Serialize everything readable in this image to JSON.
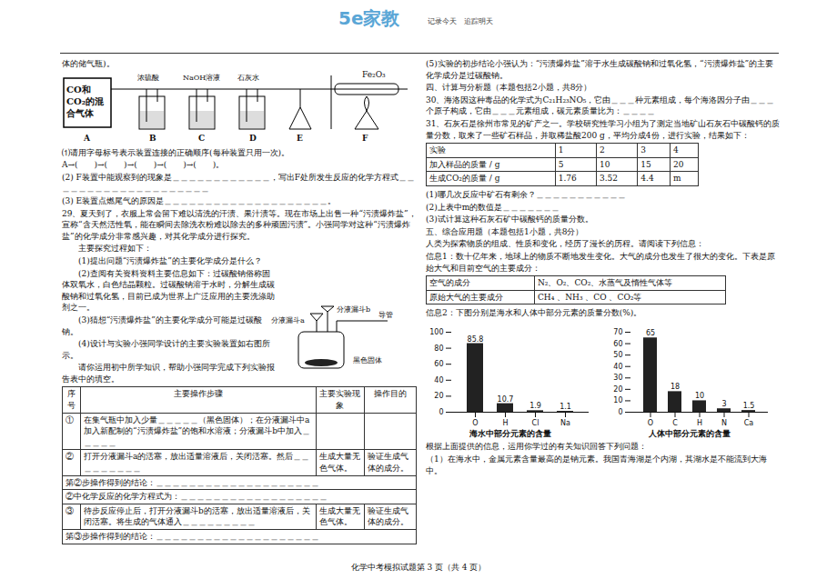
{
  "header": {
    "logo": "5e家教",
    "slogan": "记录今天　追踪明天"
  },
  "left": {
    "intro": "体的储气瓶)。",
    "apparatus": {
      "gas_label": "CO和CO₂的混合气体",
      "labels": [
        "A",
        "B",
        "C",
        "D",
        "E",
        "F"
      ],
      "reagents": [
        "浓硫酸",
        "NaOH溶液",
        "石灰水",
        "Fe₂O₃"
      ]
    },
    "q28": [
      "⑴请用字母标号表示装置连接的正确顺序(每种装置只用一次)。",
      "A→(　　)→(　　)→(　　)→(　　)→(　　)。",
      "(2) F装置中能观察到的现象是＿＿＿＿＿＿＿＿＿＿＿＿，写出F处所发生反应的化学方程式＿＿＿＿＿＿＿＿＿＿＿＿＿＿＿＿＿＿＿＿",
      "(3) E装置点燃尾气的原因是＿＿＿＿＿＿＿＿＿＿＿＿＿＿＿＿＿＿＿＿。"
    ],
    "q29": [
      "29、夏天到了，衣服上常会留下难以清洗的汗渍、果汁渍等。现在市场上出售一种“污渍爆炸盐”，宣称“含天然活性氧，能在瞬间去除洗衣粉难以除去的多种顽固污渍”。小强同学对这种“污渍爆炸盐”的化学成分非常感兴趣，对其化学成分进行探究。",
      "主要探究过程如下：",
      "(1)提出问题“污渍爆炸盐”的主要化学成分是什么？",
      "(2)查阅有关资料资料主要信息如下：过碳酸钠俗称固体双氧水，白色结晶颗粒。过碳酸钠溶于水时，分解生成碳酸钠和过氧化氢，目前已成为世界上广泛应用的主要洗涤助剂之一。",
      "(3)猜想“污渍爆炸盐”的主要化学成分可能是过碳酸钠。",
      "(4)设计与实验小强同学设计的主要实验装置如右图所示。",
      "请你运用初中所学知识，帮助小强同学完成下列实验报告表中的填空。"
    ],
    "apparatus2": [
      "分液漏斗b",
      "分液漏斗a",
      "导管",
      "黑色固体"
    ],
    "table": {
      "header": [
        "序号",
        "主要操作步骤",
        "主要实验现象",
        "操作目的"
      ],
      "rows": [
        [
          "①",
          "在集气瓶中加入少量＿＿＿＿＿（黑色固体）；在分液漏斗中a加入新配制的“污渍爆炸盐”的饱和水溶液；分液漏斗b中加入＿＿＿＿＿",
          "",
          ""
        ],
        [
          "②",
          "打开分液漏斗a的活塞，放出适量溶液后，关闭活塞。然后＿＿＿＿＿＿＿＿＿",
          "生成大量无色气体。",
          "验证生成气体的成分。"
        ],
        [
          "第②步操作得到的结论：＿＿＿＿＿＿＿＿＿＿＿＿＿＿＿＿＿＿＿＿"
        ],
        [
          "②中化学反应的化学方程式为：＿＿＿＿＿＿＿＿＿＿＿＿＿＿＿＿＿＿"
        ],
        [
          "③",
          "待步反应停止后，打开分液漏斗b的活塞，放出适量溶液后，关闭活塞。将生成的气体通入＿＿＿＿＿＿＿＿＿",
          "生成大量无色气体。",
          "验证生成气体的成分。"
        ],
        [
          "第③步操作得到的结论：＿＿＿＿＿＿＿＿＿＿＿＿＿＿＿＿＿＿＿＿"
        ]
      ]
    }
  },
  "right": {
    "top": [
      "(5)实验的初步结论小强认为：“污渍爆炸盐”溶于水生成碳酸钠和过氧化氢，“污渍爆炸盐”的主要化学成分是过碳酸钠。",
      "四、计算与分析题（本题包括2小题，共8分）",
      "30、海洛因这种毒品的化学式为C₂₁H₂₃NO₅，它由＿＿＿种元素组成，每个海洛因分子由＿＿＿个原子构成，它由＿＿＿元素组成，碳元素质量比为：＿＿＿＿",
      "31、石灰石是徐州市常见的矿产之一。学校研究性学习小组为了测定当地矿山石灰石中碳酸钙的质量分数，取来了一些矿石样品，并取稀盐酸200 g，平均分成4份，进行实验，结果如下："
    ],
    "table1": [
      [
        "实验",
        "1",
        "2",
        "3",
        "4"
      ],
      [
        "加入样品的质量 / g",
        "5",
        "10",
        "15",
        "20"
      ],
      [
        "生成CO₂的质量 / g",
        "1.76",
        "3.52",
        "4.4",
        "m"
      ]
    ],
    "middle": [
      "(1)哪几次反应中矿石有剩余？＿＿＿＿＿＿＿＿＿＿＿",
      "(2)上表中m的数值是＿＿＿＿＿＿＿",
      "(3)试计算这种石灰石矿中碳酸钙的质量分数。",
      "五、综合应用题（本题包括1小题，共8分）",
      "人类为探索物质的组成、性质和变化，经历了漫长的历程。请阅读下列信息：",
      "信息1：数十亿年来，地球上的物质不断地发生变化。大气的成分也发生了很大的变化。下表是原始大气和目前空气的主要成分："
    ],
    "table2": [
      [
        "空气的成分",
        "N₂、O₂、CO₂、水蒸气及惰性气体等"
      ],
      [
        "原始大气的主要成分",
        "CH₄ 、NH₃ 、CO 、CO₂等"
      ]
    ],
    "info2": "信息2：下图分别是海水和人体中部分元素的质量分数(%)。",
    "bottom": [
      "根据上面提供的信息，运用你学过的有关知识回答下列问题：",
      "（1）在海水中，金属元素含量最高的是钠元素。我国青海湖是个内湖，其湖水是不能流到大海中。"
    ]
  },
  "chart_data": [
    {
      "type": "bar",
      "title": "海水中部分元素的含量",
      "categories": [
        "O",
        "H",
        "Cl",
        "Na"
      ],
      "values": [
        85.8,
        10.7,
        1.9,
        1.1
      ],
      "color": "#222222",
      "ylim": [
        0,
        100
      ],
      "yticks": [
        0,
        20,
        40,
        60,
        80,
        100
      ],
      "data_labels": true
    },
    {
      "type": "bar",
      "title": "人体中部分元素的含量",
      "categories": [
        "O",
        "C",
        "H",
        "N",
        "Ca"
      ],
      "values": [
        65,
        18,
        10,
        3,
        1.5
      ],
      "color": "#222222",
      "ylim": [
        0,
        70
      ],
      "yticks": [
        0,
        10,
        20,
        30,
        40,
        50,
        60,
        70
      ],
      "data_labels": true
    }
  ],
  "footer": "化学中考模拟试题第 3 页（共 4 页）"
}
